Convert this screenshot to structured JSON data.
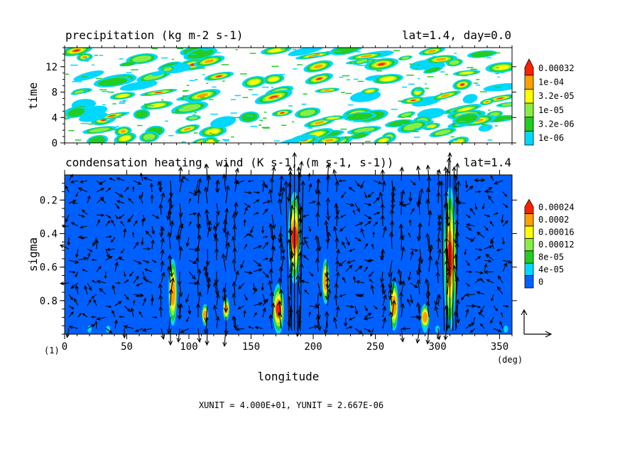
{
  "colors": {
    "cyan": "#00d8ff",
    "blue": "#0060ff",
    "green": "#22cc22",
    "lightgreen": "#88ee44",
    "yellow": "#ffff00",
    "orange": "#ffa000",
    "red": "#ff2000",
    "white": "#ffffff"
  },
  "chart_data": [
    {
      "type": "heatmap",
      "title": "precipitation (kg m-2 s-1)",
      "title_right": "lat=1.4, day=0.0",
      "xlabel": "",
      "ylabel": "time",
      "xlim": [
        0,
        360
      ],
      "ylim": [
        0,
        15
      ],
      "y_ticks": [
        "0",
        "4",
        "8",
        "12"
      ],
      "y_tick_values": [
        0,
        4,
        8,
        12
      ],
      "colorbar": {
        "levels": [
          "1e-06",
          "3.2e-06",
          "1e-05",
          "3.2e-05",
          "1e-04",
          "0.00032"
        ],
        "colors": [
          "#00d8ff",
          "#22cc22",
          "#88ee44",
          "#ffff00",
          "#ffa000",
          "#ff2000"
        ],
        "extend": "max"
      },
      "note": "Field rendered procedurally; values not individually readable"
    },
    {
      "type": "heatmap",
      "title": "condensation heating, wind (K s-1, (m s-1, s-1))",
      "title_right": "lat=1.4",
      "xlabel": "longitude",
      "ylabel": "sigma",
      "xlim": [
        0,
        360
      ],
      "ylim": [
        1.0,
        0.05
      ],
      "x_ticks": [
        "0",
        "50",
        "100",
        "150",
        "200",
        "250",
        "300",
        "350"
      ],
      "x_tick_values": [
        0,
        50,
        100,
        150,
        200,
        250,
        300,
        350
      ],
      "x_unit": "(deg)",
      "y_ticks": [
        "0.2",
        "0.4",
        "0.6",
        "0.8"
      ],
      "y_tick_values": [
        0.2,
        0.4,
        0.6,
        0.8
      ],
      "colorbar": {
        "levels": [
          "0",
          "4e-05",
          "8e-05",
          "0.00012",
          "0.00016",
          "0.0002",
          "0.00024"
        ],
        "colors": [
          "#0060ff",
          "#00d8ff",
          "#22cc22",
          "#88ee44",
          "#ffff00",
          "#ffa000",
          "#ff2000"
        ],
        "extend": "max"
      },
      "heating_columns_lon": [
        87,
        113,
        130,
        172,
        185,
        210,
        265,
        290,
        310
      ],
      "vector_field": true
    }
  ],
  "footer": {
    "panel_label": "(1)",
    "units_text": "XUNIT = 4.000E+01, YUNIT = 2.667E-06"
  }
}
